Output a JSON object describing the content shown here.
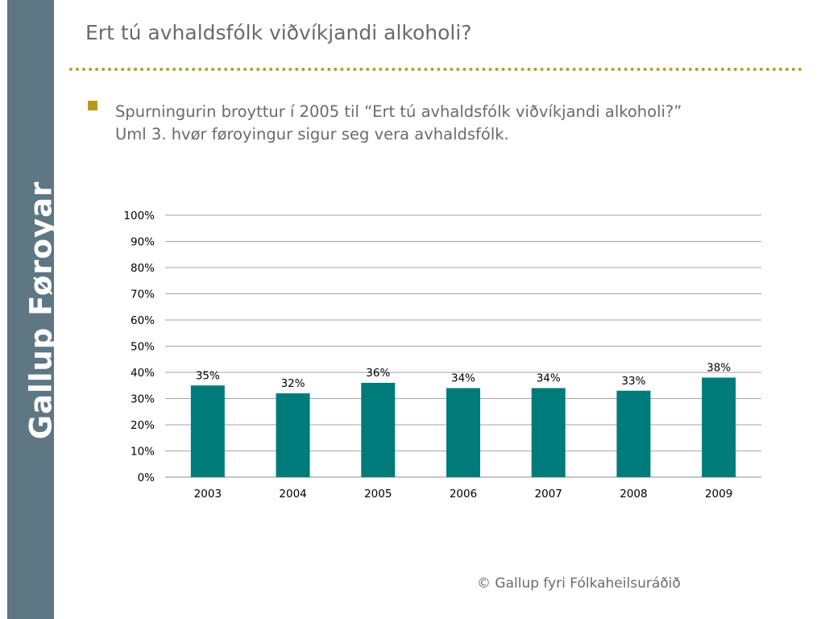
{
  "sidebar": {
    "brand": "Gallup Føroyar"
  },
  "slide": {
    "title": "Ert tú avhaldsfólk viðvíkjandi alkoholi?",
    "bullet_lines": [
      "Spurningurin broyttur í 2005 til “Ert tú avhaldsfólk viðvíkjandi alkoholi?”",
      "Uml 3. hvør føroyingur sigur seg vera avhaldsfólk."
    ],
    "footer": "© Gallup fyri Fólkaheilsuráðið"
  },
  "colors": {
    "bar": "#007b7b",
    "sidebar": "#5f7683",
    "accent": "#b89a1e"
  },
  "chart_data": {
    "type": "bar",
    "categories": [
      "2003",
      "2004",
      "2005",
      "2006",
      "2007",
      "2008",
      "2009"
    ],
    "values": [
      35,
      32,
      36,
      34,
      34,
      33,
      38
    ],
    "data_labels": [
      "35%",
      "32%",
      "36%",
      "34%",
      "34%",
      "33%",
      "38%"
    ],
    "ylim": [
      0,
      100
    ],
    "yticks": [
      0,
      10,
      20,
      30,
      40,
      50,
      60,
      70,
      80,
      90,
      100
    ],
    "ytick_labels": [
      "0%",
      "10%",
      "20%",
      "30%",
      "40%",
      "50%",
      "60%",
      "70%",
      "80%",
      "90%",
      "100%"
    ],
    "grid": true,
    "legend": "none"
  }
}
